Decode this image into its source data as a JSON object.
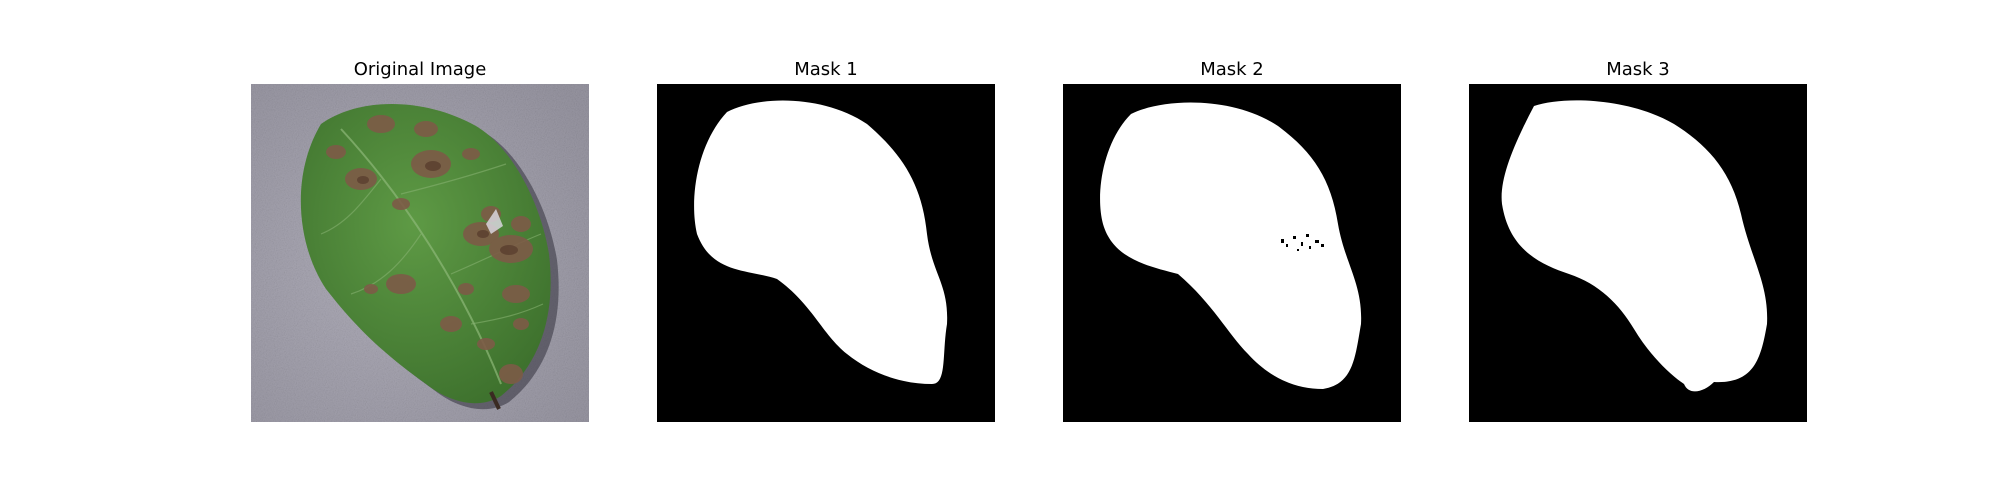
{
  "figure": {
    "panels": [
      {
        "title": "Original Image",
        "kind": "photo"
      },
      {
        "title": "Mask 1",
        "kind": "mask"
      },
      {
        "title": "Mask 2",
        "kind": "mask"
      },
      {
        "title": "Mask 3",
        "kind": "mask"
      }
    ],
    "colors": {
      "background_gray": "#a9a7b3",
      "leaf_green": "#4f8a3a",
      "leaf_dark": "#2f5e24",
      "lesion_brown": "#7d5b47",
      "mask_black": "#000000",
      "mask_white": "#ffffff"
    }
  }
}
